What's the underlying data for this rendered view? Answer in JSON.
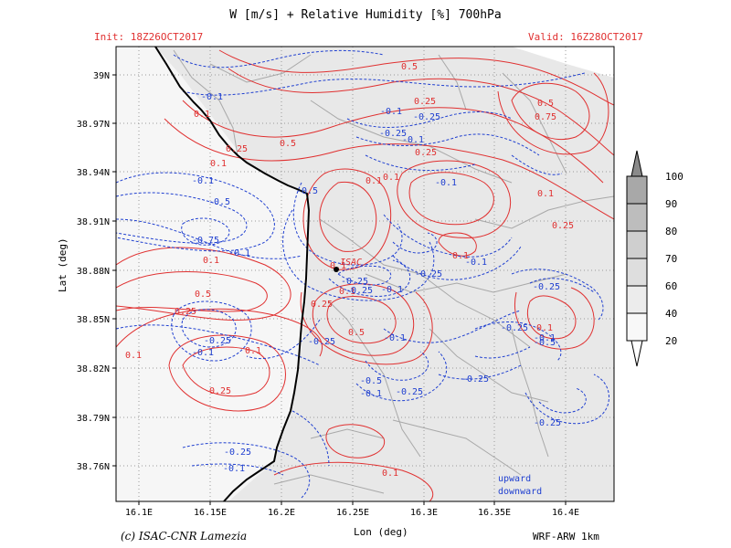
{
  "header": {
    "title": "W [m/s] + Relative Humidity [%] 700hPa",
    "init": "Init: 18Z26OCT2017",
    "valid": "Valid: 16Z28OCT2017"
  },
  "footer": {
    "credit": "(c) ISAC-CNR Lamezia",
    "model": "WRF-ARW 1km"
  },
  "axes": {
    "xlabel": "Lon (deg)",
    "ylabel": "Lat (deg)",
    "xticks": [
      "16.1E",
      "16.15E",
      "16.2E",
      "16.25E",
      "16.3E",
      "16.35E",
      "16.4E"
    ],
    "yticks": [
      "39N",
      "38.97N",
      "38.94N",
      "38.91N",
      "38.88N",
      "38.85N",
      "38.82N",
      "38.79N",
      "38.76N"
    ]
  },
  "station": {
    "label": "ISAC"
  },
  "legend": {
    "upward": "upward",
    "downward": "downward"
  },
  "colorbar": {
    "ticks": [
      "100",
      "90",
      "80",
      "70",
      "60",
      "40",
      "20"
    ],
    "colors": [
      "#8a8a8a",
      "#a8a8a8",
      "#bdbdbd",
      "#cfcfcf",
      "#dedede",
      "#ececec",
      "#f8f8f8"
    ]
  },
  "contour_labels": {
    "positive": [
      "0.5",
      "0.1",
      "0.25",
      "0.1",
      "0.5",
      "0.1",
      "0.25",
      "0.5",
      "0.75",
      "0.1",
      "0.25",
      "0.1",
      "0.25",
      "0.1",
      "0.5",
      "0.25",
      "0.1",
      "0.1",
      "0.25",
      "0.5",
      "0.1",
      "0.1",
      "0.1",
      "0.25",
      "0.1",
      "0.1"
    ],
    "negative": [
      "-0.1",
      "-0.1",
      "-0.25",
      "-0.25",
      "-0.1",
      "-0.1",
      "-0.5",
      "-0.5",
      "-0.75",
      "-0.1",
      "-0.1",
      "-0.25",
      "-0.25",
      "-0.1",
      "-0.25",
      "-0.1",
      "-0.25",
      "-0.25",
      "-0.1",
      "-0.25",
      "-0.5",
      "-0.25",
      "-0.5",
      "-0.1",
      "-0.25",
      "-0.25",
      "-0.1",
      "-0.1",
      "-0.25",
      "-0.1",
      "-0.25"
    ]
  },
  "colors": {
    "positive": "#e03030",
    "negative": "#2040d0",
    "coast": "#000000",
    "roads": "#a8a8a8",
    "land": "#e8e8e8"
  }
}
